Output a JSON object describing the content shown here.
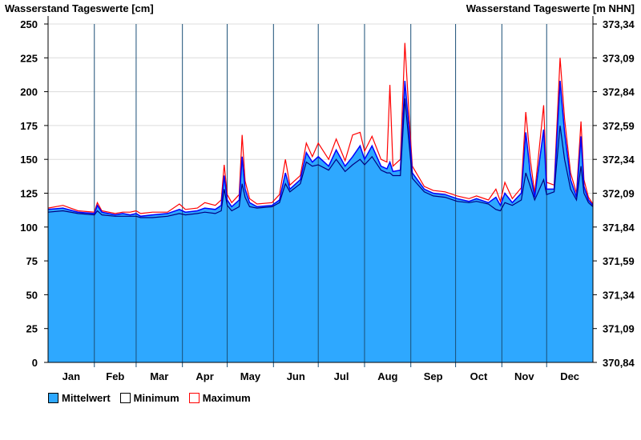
{
  "chart_data": {
    "type": "area",
    "title_left": "Wasserstand Tageswerte [cm]",
    "title_right": "Wasserstand Tageswerte [m NHN]",
    "ylim": [
      0,
      250
    ],
    "y_ticks": [
      0,
      25,
      50,
      75,
      100,
      125,
      150,
      175,
      200,
      225,
      250
    ],
    "y2_ticks": [
      "370,84",
      "371,09",
      "371,34",
      "371,59",
      "371,84",
      "372,09",
      "372,34",
      "372,59",
      "372,84",
      "373,09",
      "373,34"
    ],
    "x_days": 365,
    "months": [
      {
        "label": "Jan",
        "start": 0
      },
      {
        "label": "Feb",
        "start": 31
      },
      {
        "label": "Mar",
        "start": 59
      },
      {
        "label": "Apr",
        "start": 90
      },
      {
        "label": "May",
        "start": 120
      },
      {
        "label": "Jun",
        "start": 151
      },
      {
        "label": "Jul",
        "start": 181
      },
      {
        "label": "Aug",
        "start": 212
      },
      {
        "label": "Sep",
        "start": 243
      },
      {
        "label": "Oct",
        "start": 273
      },
      {
        "label": "Nov",
        "start": 304
      },
      {
        "label": "Dec",
        "start": 334
      }
    ],
    "series_fields": [
      "day",
      "mean",
      "min",
      "max"
    ],
    "points": [
      [
        0,
        113,
        111,
        114
      ],
      [
        10,
        114,
        112,
        116
      ],
      [
        20,
        111,
        110,
        112
      ],
      [
        31,
        110,
        109,
        111
      ],
      [
        33,
        116,
        112,
        118
      ],
      [
        36,
        111,
        109,
        112
      ],
      [
        45,
        109,
        108,
        110
      ],
      [
        50,
        110,
        108,
        111
      ],
      [
        55,
        109,
        108,
        111
      ],
      [
        59,
        110,
        108,
        112
      ],
      [
        62,
        108,
        107,
        110
      ],
      [
        70,
        109,
        107,
        111
      ],
      [
        80,
        110,
        108,
        111
      ],
      [
        88,
        113,
        110,
        117
      ],
      [
        92,
        111,
        109,
        113
      ],
      [
        100,
        112,
        110,
        114
      ],
      [
        105,
        114,
        111,
        118
      ],
      [
        112,
        113,
        110,
        116
      ],
      [
        116,
        116,
        112,
        120
      ],
      [
        118,
        138,
        128,
        146
      ],
      [
        120,
        120,
        116,
        124
      ],
      [
        123,
        115,
        112,
        118
      ],
      [
        128,
        120,
        115,
        124
      ],
      [
        130,
        152,
        132,
        168
      ],
      [
        132,
        128,
        122,
        134
      ],
      [
        135,
        118,
        115,
        121
      ],
      [
        140,
        115,
        114,
        117
      ],
      [
        150,
        116,
        115,
        118
      ],
      [
        155,
        120,
        118,
        124
      ],
      [
        159,
        140,
        132,
        150
      ],
      [
        162,
        128,
        126,
        131
      ],
      [
        169,
        135,
        132,
        138
      ],
      [
        173,
        155,
        148,
        162
      ],
      [
        177,
        148,
        145,
        152
      ],
      [
        181,
        152,
        146,
        162
      ],
      [
        188,
        145,
        142,
        150
      ],
      [
        193,
        157,
        150,
        165
      ],
      [
        199,
        145,
        141,
        149
      ],
      [
        204,
        152,
        146,
        168
      ],
      [
        209,
        160,
        150,
        170
      ],
      [
        212,
        150,
        146,
        156
      ],
      [
        217,
        160,
        152,
        167
      ],
      [
        223,
        145,
        142,
        150
      ],
      [
        227,
        143,
        140,
        148
      ],
      [
        229,
        148,
        140,
        205
      ],
      [
        231,
        141,
        138,
        145
      ],
      [
        236,
        142,
        138,
        150
      ],
      [
        239,
        208,
        195,
        236
      ],
      [
        242,
        170,
        160,
        180
      ],
      [
        244,
        140,
        136,
        145
      ],
      [
        252,
        128,
        126,
        130
      ],
      [
        258,
        125,
        123,
        127
      ],
      [
        266,
        124,
        122,
        126
      ],
      [
        274,
        121,
        119,
        123
      ],
      [
        282,
        119,
        118,
        121
      ],
      [
        287,
        121,
        119,
        123
      ],
      [
        295,
        118,
        117,
        120
      ],
      [
        300,
        122,
        113,
        128
      ],
      [
        303,
        116,
        112,
        119
      ],
      [
        306,
        125,
        118,
        133
      ],
      [
        311,
        118,
        116,
        121
      ],
      [
        317,
        125,
        120,
        129
      ],
      [
        320,
        170,
        140,
        185
      ],
      [
        323,
        140,
        130,
        150
      ],
      [
        326,
        122,
        120,
        125
      ],
      [
        332,
        172,
        135,
        190
      ],
      [
        334,
        128,
        124,
        133
      ],
      [
        339,
        128,
        126,
        131
      ],
      [
        343,
        208,
        175,
        225
      ],
      [
        346,
        170,
        150,
        180
      ],
      [
        350,
        135,
        128,
        140
      ],
      [
        354,
        122,
        120,
        125
      ],
      [
        357,
        167,
        145,
        178
      ],
      [
        359,
        130,
        125,
        135
      ],
      [
        362,
        120,
        118,
        122
      ],
      [
        365,
        116,
        115,
        117
      ]
    ],
    "legend": [
      {
        "label": "Mittelwert",
        "color": "#2EA8FF"
      },
      {
        "label": "Minimum",
        "color": "#FFFFFF"
      },
      {
        "label": "Maximum",
        "color": "#FFFFFF"
      }
    ],
    "colors": {
      "fill": "#2EA8FF",
      "mean": "#0000FF",
      "min": "#000080",
      "max": "#FF0000",
      "grid": "#DCDCDC"
    }
  }
}
